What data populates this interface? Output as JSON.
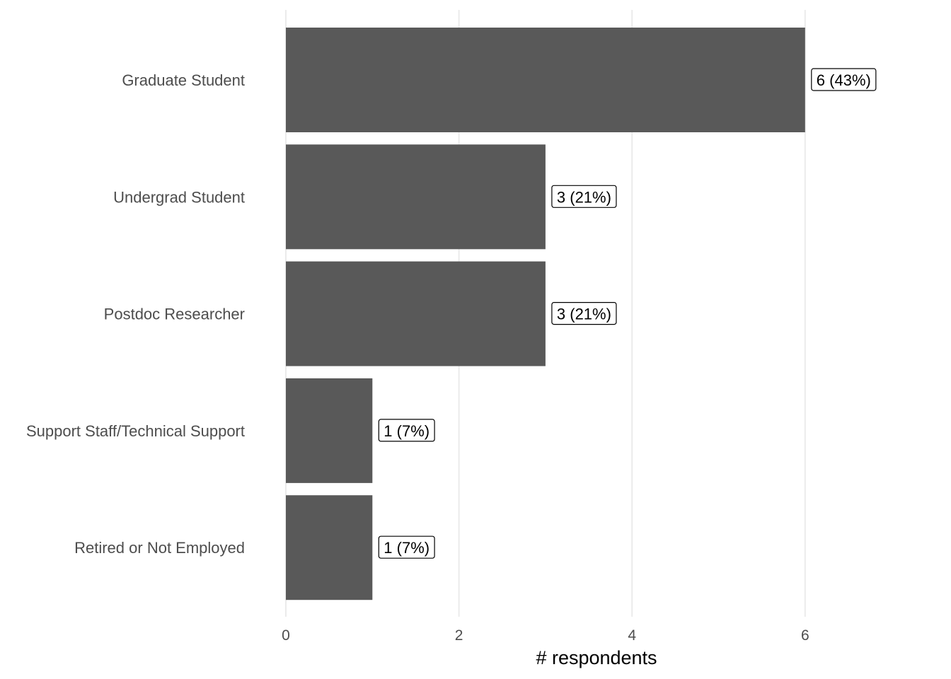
{
  "chart_data": {
    "type": "bar",
    "orientation": "horizontal",
    "categories": [
      "Graduate Student",
      "Undergrad Student",
      "Postdoc Researcher",
      "Support Staff/Technical Support",
      "Retired or Not Employed"
    ],
    "values": [
      6,
      3,
      3,
      1,
      1
    ],
    "data_labels": [
      "6 (43%)",
      "3 (21%)",
      "3 (21%)",
      "1 (7%)",
      "1 (7%)"
    ],
    "xlabel": "# respondents",
    "ylabel": "",
    "xlim": [
      0,
      7.2
    ],
    "x_ticks": [
      0,
      2,
      4,
      6
    ],
    "grid": "vertical",
    "bar_color": "#595959"
  }
}
